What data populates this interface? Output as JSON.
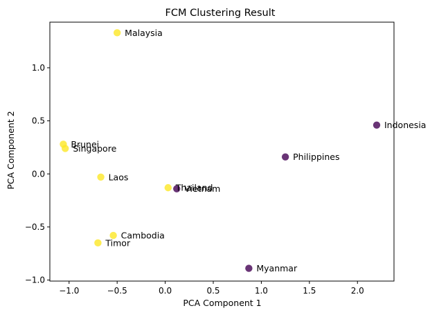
{
  "chart_data": {
    "type": "scatter",
    "title": "FCM Clustering Result",
    "xlabel": "PCA Component 1",
    "ylabel": "PCA Component 2",
    "xlim": [
      -1.2,
      2.38
    ],
    "ylim": [
      -1.01,
      1.43
    ],
    "xticks": [
      -1.0,
      -0.5,
      0.0,
      0.5,
      1.0,
      1.5,
      2.0
    ],
    "xtick_labels": [
      "−1.0",
      "−0.5",
      "0.0",
      "0.5",
      "1.0",
      "1.5",
      "2.0"
    ],
    "yticks": [
      -1.0,
      -0.5,
      0.0,
      0.5,
      1.0
    ],
    "ytick_labels": [
      "−1.0",
      "−0.5",
      "0.0",
      "0.5",
      "1.0"
    ],
    "grid": false,
    "legend": "none",
    "cluster_colors": [
      "#fde725",
      "#440154"
    ],
    "points": [
      {
        "label": "Malaysia",
        "x": -0.5,
        "y": 1.33,
        "cluster": 0
      },
      {
        "label": "Brunei",
        "x": -1.06,
        "y": 0.28,
        "cluster": 0
      },
      {
        "label": "Singapore",
        "x": -1.04,
        "y": 0.24,
        "cluster": 0
      },
      {
        "label": "Laos",
        "x": -0.67,
        "y": -0.03,
        "cluster": 0
      },
      {
        "label": "Thailand",
        "x": 0.03,
        "y": -0.13,
        "cluster": 0
      },
      {
        "label": "Cambodia",
        "x": -0.54,
        "y": -0.58,
        "cluster": 0
      },
      {
        "label": "Timor",
        "x": -0.7,
        "y": -0.65,
        "cluster": 0
      },
      {
        "label": "Vietnam",
        "x": 0.12,
        "y": -0.14,
        "cluster": 1
      },
      {
        "label": "Indonesia",
        "x": 2.2,
        "y": 0.46,
        "cluster": 1
      },
      {
        "label": "Philippines",
        "x": 1.25,
        "y": 0.16,
        "cluster": 1
      },
      {
        "label": "Myanmar",
        "x": 0.87,
        "y": -0.89,
        "cluster": 1
      }
    ]
  }
}
